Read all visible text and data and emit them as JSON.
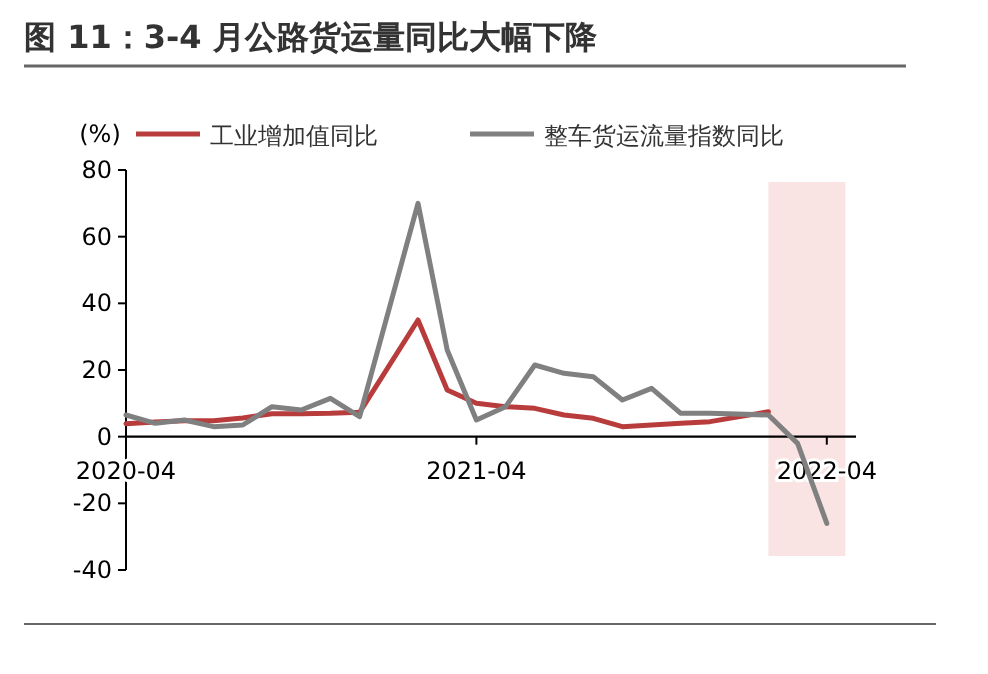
{
  "chart_data": {
    "type": "line",
    "title": "图 11：3-4 月公路货运量同比大幅下降",
    "ylabel": "(%)",
    "legend": "top",
    "grid": false,
    "line_style": "solid",
    "ylim": [
      -40,
      80
    ],
    "yticks": [
      -40,
      -20,
      0,
      20,
      40,
      60,
      80
    ],
    "xlim": [
      "2020-04",
      "2022-05"
    ],
    "xticks": [
      "2020-04",
      "2021-04",
      "2022-04"
    ],
    "bands": [
      {
        "axis": "x",
        "from": "2022-02",
        "to": "2022-04-20",
        "color": "#f9e3e3"
      }
    ],
    "series": [
      {
        "name": "工业增加值同比",
        "color": "#b83c3c",
        "x": [
          "2020-04",
          "2020-05",
          "2020-06",
          "2020-07",
          "2020-08",
          "2020-09",
          "2020-10",
          "2020-11",
          "2020-12",
          "2021-02",
          "2021-03",
          "2021-04",
          "2021-05",
          "2021-06",
          "2021-07",
          "2021-08",
          "2021-09",
          "2021-10",
          "2021-11",
          "2021-12",
          "2022-02"
        ],
        "values": [
          3.9,
          4.4,
          4.8,
          4.8,
          5.6,
          6.9,
          6.9,
          7,
          7.3,
          35,
          14,
          10,
          9,
          8.5,
          6.5,
          5.5,
          3,
          3.5,
          4,
          4.5,
          7.5
        ]
      },
      {
        "name": "整车货运流量指数同比",
        "color": "#808080",
        "x": [
          "2020-04",
          "2020-05",
          "2020-06",
          "2020-07",
          "2020-08",
          "2020-09",
          "2020-10",
          "2020-11",
          "2020-12",
          "2021-02",
          "2021-03",
          "2021-04",
          "2021-05",
          "2021-06",
          "2021-07",
          "2021-08",
          "2021-09",
          "2021-10",
          "2021-11",
          "2021-12",
          "2022-02",
          "2022-03",
          "2022-04"
        ],
        "values": [
          6.5,
          4,
          5,
          3,
          3.5,
          9,
          8,
          11.5,
          6,
          70,
          26,
          5,
          9,
          21.5,
          19,
          18,
          11,
          14.5,
          7,
          7,
          6.5,
          -2,
          -26
        ]
      }
    ]
  }
}
